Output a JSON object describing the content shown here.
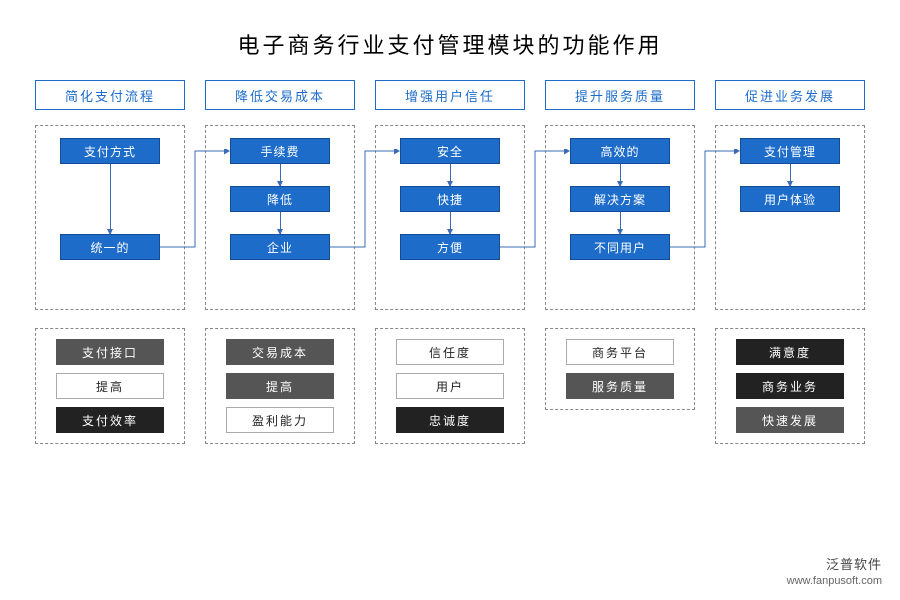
{
  "title": "电子商务行业支付管理模块的功能作用",
  "title_fontsize": 22,
  "colors": {
    "header_border": "#1d6cc9",
    "header_text": "#1d6cc9",
    "header_bg": "#ffffff",
    "node_bg": "#1d6cc9",
    "node_border": "#134d93",
    "node_text": "#ffffff",
    "connector": "#3a6bb5",
    "dash_border": "#888888",
    "tag_dark_bg": "#222222",
    "tag_dark_text": "#ffffff",
    "tag_light_bg": "#ffffff",
    "tag_light_text": "#222222",
    "tag_light_border": "#aaaaaa",
    "tag_gray_bg": "#555555",
    "tag_gray_text": "#ffffff"
  },
  "columns": [
    {
      "header": "简化支付流程",
      "flow_height": 185,
      "nodes": [
        "支付方式",
        "统一的"
      ],
      "node_gaps": [
        70
      ],
      "tags": [
        {
          "text": "支付接口",
          "style": "gray"
        },
        {
          "text": "提高",
          "style": "light"
        },
        {
          "text": "支付效率",
          "style": "dark"
        }
      ]
    },
    {
      "header": "降低交易成本",
      "flow_height": 185,
      "nodes": [
        "手续费",
        "降低",
        "企业"
      ],
      "node_gaps": [
        22,
        22
      ],
      "tags": [
        {
          "text": "交易成本",
          "style": "gray"
        },
        {
          "text": "提高",
          "style": "gray"
        },
        {
          "text": "盈利能力",
          "style": "light"
        }
      ]
    },
    {
      "header": "增强用户信任",
      "flow_height": 185,
      "nodes": [
        "安全",
        "快捷",
        "方便"
      ],
      "node_gaps": [
        22,
        22
      ],
      "tags": [
        {
          "text": "信任度",
          "style": "light"
        },
        {
          "text": "用户",
          "style": "light"
        },
        {
          "text": "忠诚度",
          "style": "dark"
        }
      ]
    },
    {
      "header": "提升服务质量",
      "flow_height": 185,
      "nodes": [
        "高效的",
        "解决方案",
        "不同用户"
      ],
      "node_gaps": [
        22,
        22
      ],
      "tags": [
        {
          "text": "商务平台",
          "style": "light"
        },
        {
          "text": "服务质量",
          "style": "gray"
        }
      ]
    },
    {
      "header": "促进业务发展",
      "flow_height": 185,
      "nodes": [
        "支付管理",
        "用户体验"
      ],
      "node_gaps": [
        22
      ],
      "tags": [
        {
          "text": "满意度",
          "style": "dark"
        },
        {
          "text": "商务业务",
          "style": "dark"
        },
        {
          "text": "快速发展",
          "style": "gray"
        }
      ]
    }
  ],
  "watermark": {
    "brand": "泛普软件",
    "url": "www.fanpusoft.com"
  }
}
